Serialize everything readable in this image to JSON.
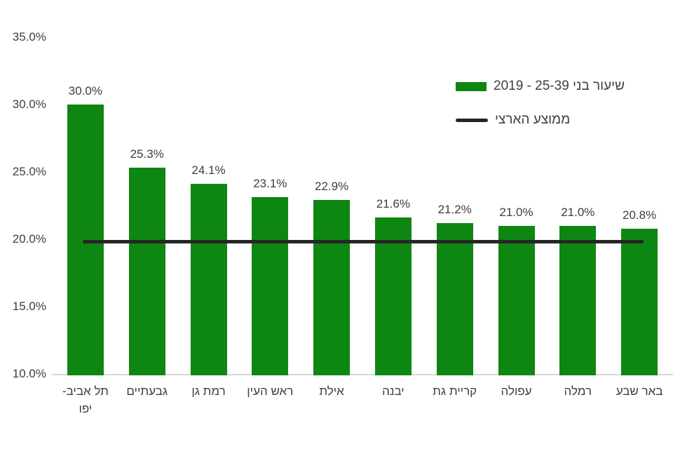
{
  "chart_data": {
    "type": "bar",
    "title": "",
    "categories": [
      "תל אביב-\nיפו",
      "גבעתיים",
      "רמת גן",
      "ראש העין",
      "אילת",
      "יבנה",
      "קריית גת",
      "עפולה",
      "רמלה",
      "באר שבע"
    ],
    "values": [
      30.0,
      25.3,
      24.1,
      23.1,
      22.9,
      21.6,
      21.2,
      21.0,
      21.0,
      20.8
    ],
    "value_labels": [
      "30.0%",
      "25.3%",
      "24.1%",
      "23.1%",
      "22.9%",
      "21.6%",
      "21.2%",
      "21.0%",
      "21.0%",
      "20.8%"
    ],
    "xlabel": "",
    "ylabel": "",
    "ylim": [
      10,
      35
    ],
    "y_ticks": [
      {
        "value": 35,
        "label": "35.0%"
      },
      {
        "value": 30,
        "label": "30.0%"
      },
      {
        "value": 25,
        "label": "25.0%"
      },
      {
        "value": 20,
        "label": "20.0%"
      },
      {
        "value": 15,
        "label": "15.0%"
      },
      {
        "value": 10,
        "label": "10.0%"
      }
    ],
    "grid": false,
    "average_line": {
      "value": 19.8,
      "color": "#262626"
    },
    "legend": {
      "position": "top-right",
      "items": [
        {
          "label": "שיעור בני 25-39 - 2019",
          "swatch": "bar",
          "color": "#0e8612"
        },
        {
          "label": "ממוצע הארצי",
          "swatch": "line",
          "color": "#262626"
        }
      ]
    },
    "colors": {
      "bar": "#0e8612",
      "axis_line": "#d9d9d9",
      "text": "#3d3d3d",
      "background": "#ffffff"
    }
  }
}
